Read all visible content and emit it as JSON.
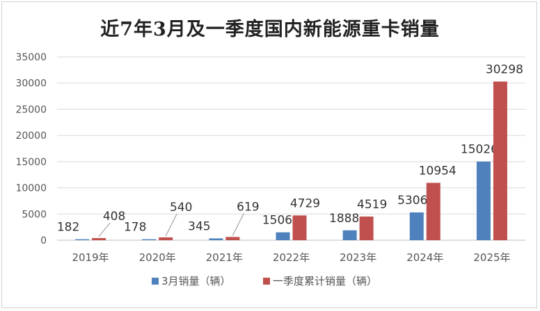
{
  "chart_data": {
    "type": "bar",
    "title": "近7年3月及一季度国内新能源重卡销量",
    "categories": [
      "2019年",
      "2020年",
      "2021年",
      "2022年",
      "2023年",
      "2024年",
      "2025年"
    ],
    "series": [
      {
        "name": "3月销量（辆）",
        "values": [
          182,
          178,
          345,
          1506,
          1888,
          5306,
          15026
        ],
        "color": "#4F81BD"
      },
      {
        "name": "一季度累计销量（辆）",
        "values": [
          408,
          540,
          619,
          4729,
          4519,
          10954,
          30298
        ],
        "color": "#C0504D"
      }
    ],
    "ylim": [
      0,
      35000
    ],
    "yticks": [
      0,
      5000,
      10000,
      15000,
      20000,
      25000,
      30000,
      35000
    ],
    "grid": true,
    "legend_position": "bottom",
    "xlabel": "",
    "ylabel": ""
  }
}
